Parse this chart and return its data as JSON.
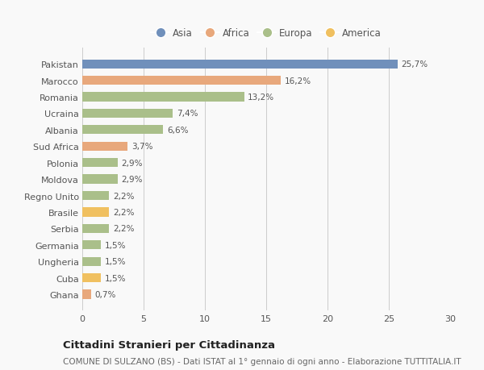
{
  "categories": [
    "Pakistan",
    "Marocco",
    "Romania",
    "Ucraina",
    "Albania",
    "Sud Africa",
    "Polonia",
    "Moldova",
    "Regno Unito",
    "Brasile",
    "Serbia",
    "Germania",
    "Ungheria",
    "Cuba",
    "Ghana"
  ],
  "values": [
    25.7,
    16.2,
    13.2,
    7.4,
    6.6,
    3.7,
    2.9,
    2.9,
    2.2,
    2.2,
    2.2,
    1.5,
    1.5,
    1.5,
    0.7
  ],
  "labels": [
    "25,7%",
    "16,2%",
    "13,2%",
    "7,4%",
    "6,6%",
    "3,7%",
    "2,9%",
    "2,9%",
    "2,2%",
    "2,2%",
    "2,2%",
    "1,5%",
    "1,5%",
    "1,5%",
    "0,7%"
  ],
  "continents": [
    "Asia",
    "Africa",
    "Europa",
    "Europa",
    "Europa",
    "Africa",
    "Europa",
    "Europa",
    "Europa",
    "America",
    "Europa",
    "Europa",
    "Europa",
    "America",
    "Africa"
  ],
  "colors": {
    "Asia": "#7090bb",
    "Africa": "#e8a87c",
    "Europa": "#aabf8a",
    "America": "#f0c060"
  },
  "legend_order": [
    "Asia",
    "Africa",
    "Europa",
    "America"
  ],
  "title": "Cittadini Stranieri per Cittadinanza",
  "subtitle": "COMUNE DI SULZANO (BS) - Dati ISTAT al 1° gennaio di ogni anno - Elaborazione TUTTITALIA.IT",
  "xlim": [
    0,
    30
  ],
  "xticks": [
    0,
    5,
    10,
    15,
    20,
    25,
    30
  ],
  "background_color": "#f9f9f9",
  "bar_height": 0.55,
  "title_fontsize": 9.5,
  "subtitle_fontsize": 7.5,
  "tick_fontsize": 8,
  "label_fontsize": 7.5,
  "legend_fontsize": 8.5
}
